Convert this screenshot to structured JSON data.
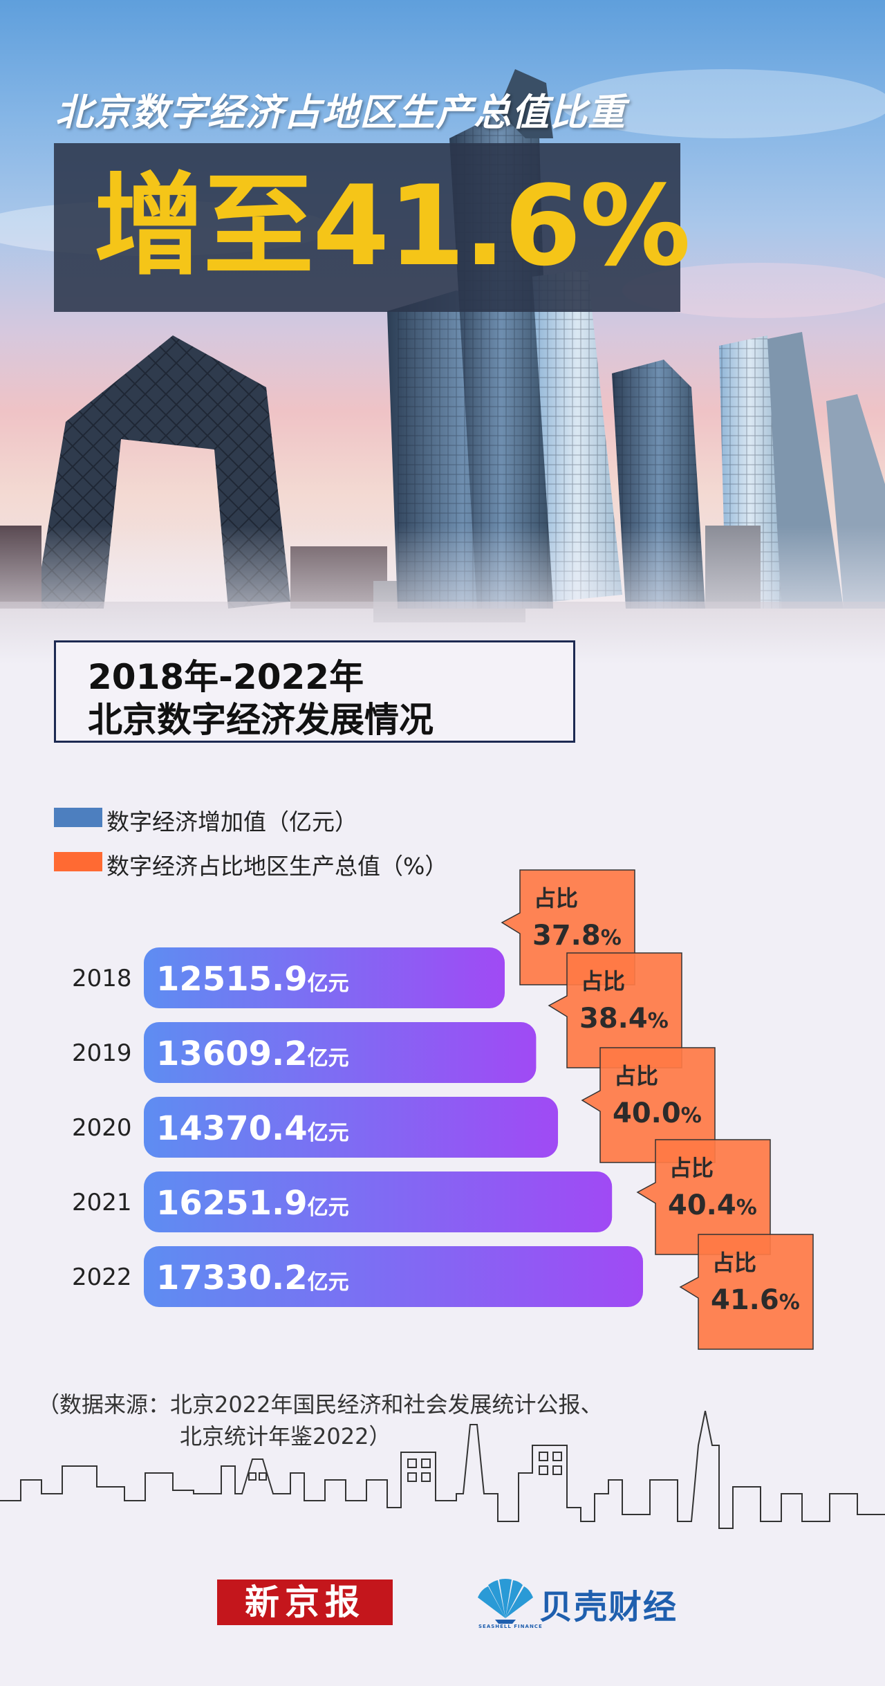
{
  "header": {
    "headline": "北京数字经济占地区生产总值比重",
    "big_figure": "增至41.6%"
  },
  "subtitle": {
    "line1": "2018年-2022年",
    "line2": "北京数字经济发展情况"
  },
  "legend": [
    {
      "label": "数字经济增加值（亿元）",
      "color": "#4d7fbf"
    },
    {
      "label": "数字经济占比地区生产总值（%）",
      "color": "#ff6a33"
    }
  ],
  "chart_data": {
    "type": "bar",
    "orientation": "horizontal",
    "categories": [
      "2018",
      "2019",
      "2020",
      "2021",
      "2022"
    ],
    "series": [
      {
        "name": "数字经济增加值（亿元）",
        "values": [
          12515.9,
          13609.2,
          14370.4,
          16251.9,
          17330.2
        ],
        "unit_label": "亿元"
      },
      {
        "name": "数字经济占比地区生产总值（%）",
        "values": [
          37.8,
          38.4,
          40.0,
          40.4,
          41.6
        ],
        "prefix_label": "占比",
        "unit_label": "%"
      }
    ],
    "value_labels": [
      "12515.9",
      "13609.2",
      "14370.4",
      "16251.9",
      "17330.2"
    ],
    "share_labels": [
      "37.8",
      "38.4",
      "40.0",
      "40.4",
      "41.6"
    ],
    "colors": {
      "bar_start": "#5e8df2",
      "bar_end": "#a04af4",
      "callout": "#ff7a45",
      "callout_border": "#333333"
    }
  },
  "source": {
    "line1": "（数据来源：北京2022年国民经济和社会发展统计公报、",
    "line2": "北京统计年鉴2022）"
  },
  "footer": {
    "logo_left": "新京报",
    "logo_right": "贝壳财经",
    "logo_right_en": "SEASHELL FINANCE"
  }
}
